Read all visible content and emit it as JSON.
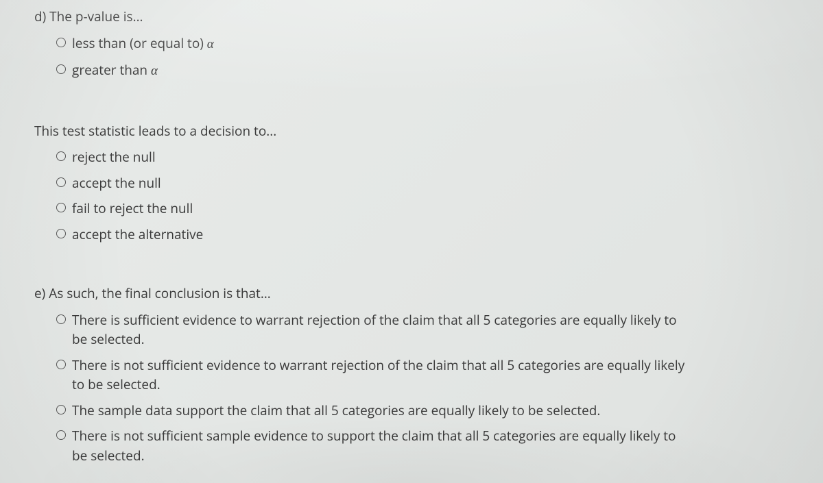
{
  "questions": [
    {
      "prompt_prefix": "d) The p-value is...",
      "options": [
        {
          "text_prefix": "less than (or equal to) ",
          "alpha": true
        },
        {
          "text_prefix": "greater than ",
          "alpha": true
        }
      ]
    },
    {
      "prompt_prefix": "This test statistic leads to a decision to...",
      "options": [
        {
          "text_prefix": "reject the null"
        },
        {
          "text_prefix": "accept the null"
        },
        {
          "text_prefix": "fail to reject the null"
        },
        {
          "text_prefix": "accept the alternative"
        }
      ]
    },
    {
      "prompt_prefix": "e) As such, the final conclusion is that...",
      "options": [
        {
          "text_prefix": "There is sufficient evidence to warrant rejection of the claim that all 5 categories are equally likely to be selected."
        },
        {
          "text_prefix": "There is not sufficient evidence to warrant rejection of the claim that all 5 categories are equally likely to be selected."
        },
        {
          "text_prefix": "The sample data support the claim that all 5 categories are equally likely to be selected."
        },
        {
          "text_prefix": "There is not sufficient sample evidence to support the claim that all 5 categories are equally likely to be selected."
        }
      ]
    }
  ],
  "alpha_glyph": "α",
  "colors": {
    "background": "#e5e8e6",
    "text": "#3a3a3a",
    "radio_border": "#5a5a5a"
  },
  "typography": {
    "font_family": "Segoe UI / Open Sans",
    "font_size_pt": 14
  }
}
